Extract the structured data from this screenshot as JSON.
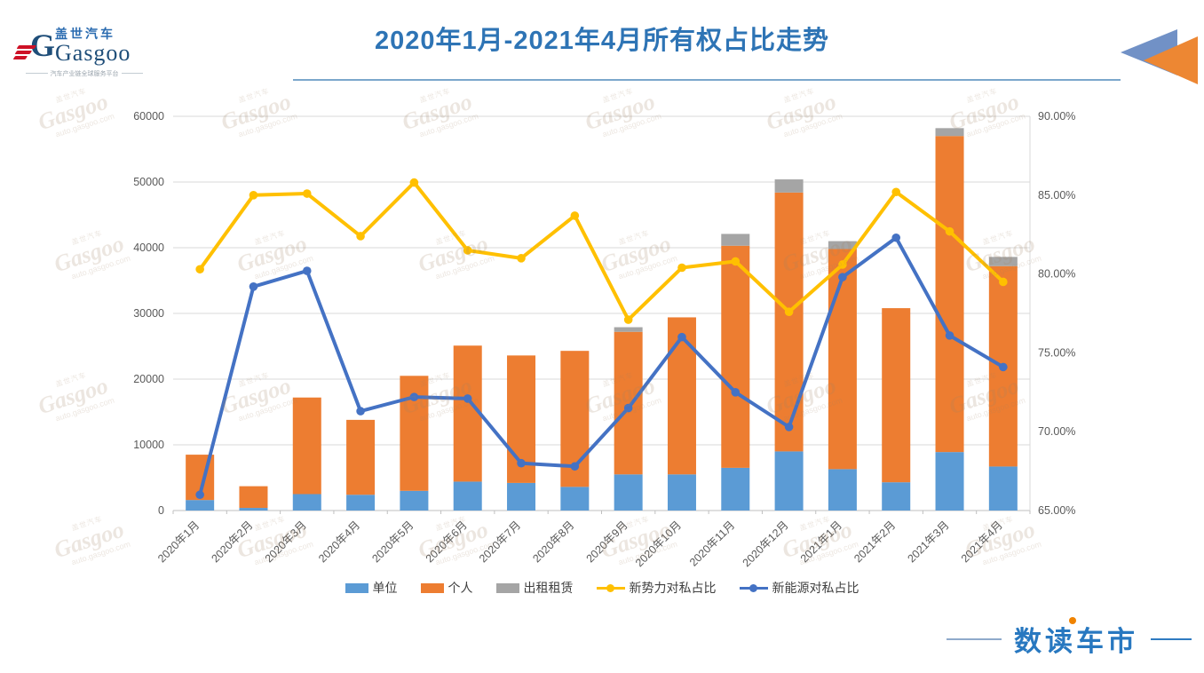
{
  "header": {
    "logo": {
      "cn": "盖世汽车",
      "en": "Gasgoo",
      "tagline": "汽车产业链全球服务平台"
    },
    "title": "2020年1月-2021年4月所有权占比走势"
  },
  "watermark": {
    "cn": "盖世汽车",
    "en": "Gasgoo",
    "url": "auto.gasgoo.com"
  },
  "footer": {
    "brand": "数读车市"
  },
  "chart_data": {
    "type": "combo-stacked-bar-line",
    "categories": [
      "2020年1月",
      "2020年2月",
      "2020年3月",
      "2020年4月",
      "2020年5月",
      "2020年6月",
      "2020年7月",
      "2020年8月",
      "2020年9月",
      "2020年10月",
      "2020年11月",
      "2020年12月",
      "2021年1月",
      "2021年2月",
      "2021年3月",
      "2021年4月"
    ],
    "bar_series": [
      {
        "key": "unit",
        "name": "单位",
        "color": "#5B9BD5",
        "values": [
          1600,
          400,
          2500,
          2400,
          3000,
          4400,
          4200,
          3600,
          5500,
          5500,
          6500,
          9000,
          6300,
          4300,
          8900,
          6700
        ]
      },
      {
        "key": "personal",
        "name": "个人",
        "color": "#ED7D31",
        "values": [
          6900,
          3300,
          14700,
          11400,
          17500,
          20700,
          19400,
          20700,
          21700,
          23900,
          33800,
          39400,
          33500,
          26500,
          48100,
          30500
        ]
      },
      {
        "key": "rental",
        "name": "出租租赁",
        "color": "#A5A5A5",
        "values": [
          0,
          0,
          0,
          0,
          0,
          0,
          0,
          0,
          700,
          0,
          1800,
          2000,
          1200,
          0,
          1200,
          1400
        ]
      }
    ],
    "line_series": [
      {
        "key": "new-force-ratio",
        "name": "新势力对私占比",
        "color": "#FFC000",
        "axis": "right",
        "values": [
          80.3,
          85.0,
          85.1,
          82.4,
          85.8,
          81.5,
          81.0,
          83.7,
          77.1,
          80.4,
          80.8,
          77.6,
          80.6,
          85.2,
          82.7,
          79.5
        ]
      },
      {
        "key": "new-energy-ratio",
        "name": "新能源对私占比",
        "color": "#4472C4",
        "axis": "right",
        "values": [
          66.0,
          79.2,
          80.2,
          71.3,
          72.2,
          72.1,
          68.0,
          67.8,
          71.5,
          76.0,
          72.5,
          70.3,
          79.8,
          82.3,
          76.1,
          74.1
        ]
      }
    ],
    "left_axis": {
      "min": 0,
      "max": 60000,
      "step": 10000,
      "labels": [
        "0",
        "10000",
        "20000",
        "30000",
        "40000",
        "50000",
        "60000"
      ]
    },
    "right_axis": {
      "min": 65,
      "max": 90,
      "step": 5,
      "labels": [
        "65.00%",
        "70.00%",
        "75.00%",
        "80.00%",
        "85.00%",
        "90.00%"
      ]
    },
    "grid": true,
    "legend_position": "bottom"
  }
}
